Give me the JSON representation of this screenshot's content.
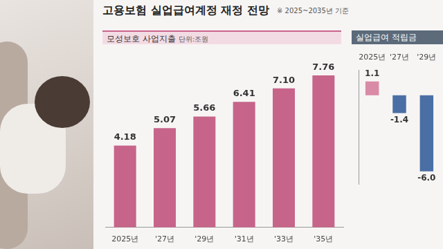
{
  "header": {
    "title": "고용보험 실업급여계정 재정 전망",
    "note": "※ 2025~2035년 기준"
  },
  "chart_data": [
    {
      "type": "bar",
      "title": "모성보호 사업지출",
      "subtitle": "단위:조원",
      "categories": [
        "2025년",
        "'27년",
        "'29년",
        "'31년",
        "'33년",
        "'35년"
      ],
      "values": [
        4.18,
        5.07,
        5.66,
        6.41,
        7.1,
        7.76
      ],
      "value_labels": [
        "4.18",
        "5.07",
        "5.66",
        "6.41",
        "7.10",
        "7.76"
      ],
      "color": "#c7648a",
      "ylim": [
        0,
        9
      ],
      "yticks": [
        0,
        9
      ],
      "grid": false,
      "data_labels": true,
      "tick_labels": "x"
    },
    {
      "type": "bar",
      "title": "실업급여 적립금",
      "categories": [
        "2025년",
        "'27년",
        "'29년"
      ],
      "values": [
        1.1,
        -1.4,
        -6.0
      ],
      "value_labels": [
        "1.1",
        "-1.4",
        "-6.0"
      ],
      "colors": [
        "#d98aa6",
        "#4a6fa5",
        "#4a6fa5"
      ],
      "ylim": [
        -7,
        2
      ],
      "yticks": [
        -7,
        2
      ],
      "grid": false,
      "data_labels": true,
      "tick_labels": "x"
    }
  ]
}
